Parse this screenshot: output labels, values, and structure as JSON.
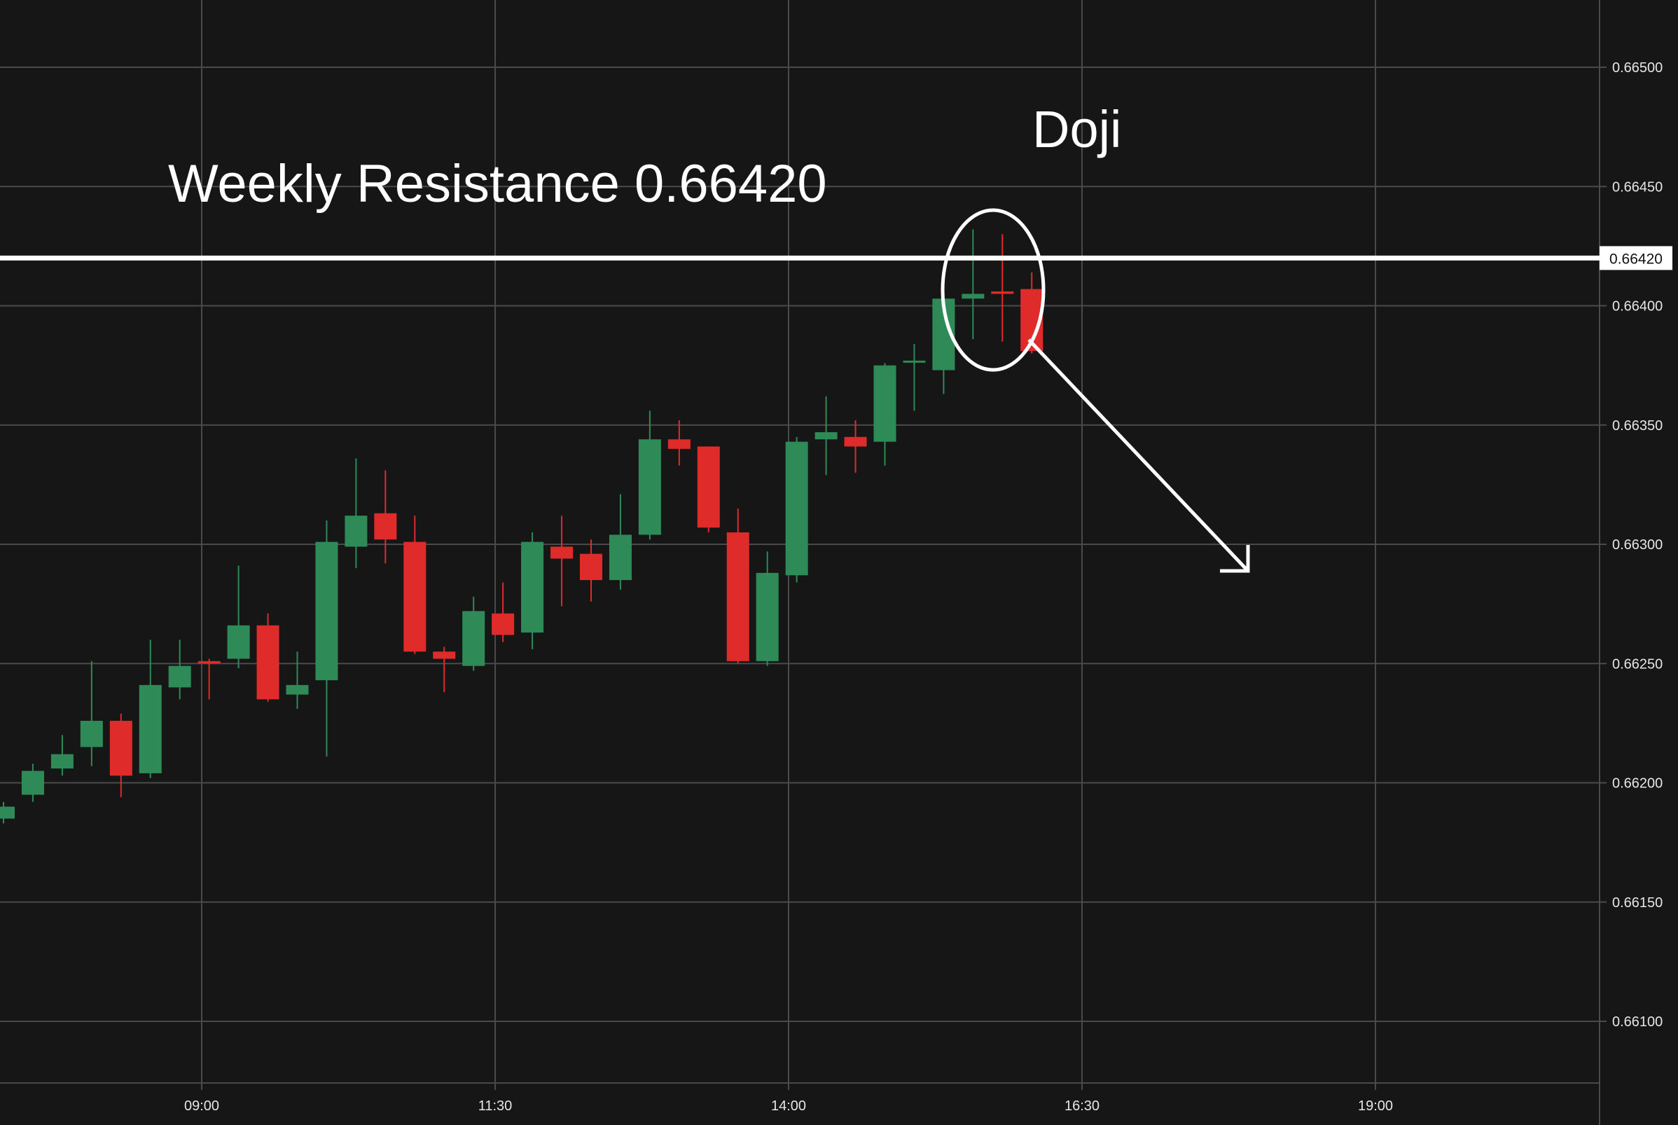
{
  "colors": {
    "background": "#161616",
    "grid": "#4a4a4a",
    "bull": "#2e8b57",
    "bear": "#e02b2b",
    "annotation": "#ffffff",
    "axis_text": "#e6e6e6"
  },
  "annotations": {
    "resistance_text": "Weekly Resistance 0.66420",
    "doji_text": "Doji",
    "resistance_label": "0.66420"
  },
  "chart_data": {
    "type": "candlestick",
    "title": "",
    "xlabel": "",
    "ylabel": "",
    "ylim": [
      0.6607,
      0.6653
    ],
    "grid": true,
    "x_tick_labels": [
      "09:00",
      "11:30",
      "14:00",
      "16:30",
      "19:00"
    ],
    "y_tick_labels": [
      "0.66500",
      "0.66450",
      "0.66400",
      "0.66350",
      "0.66300",
      "0.66250",
      "0.66200",
      "0.66150",
      "0.66100"
    ],
    "resistance_level": 0.6642,
    "candles": [
      {
        "open": 0.66185,
        "high": 0.66192,
        "low": 0.66183,
        "close": 0.6619
      },
      {
        "open": 0.66195,
        "high": 0.66208,
        "low": 0.66192,
        "close": 0.66205
      },
      {
        "open": 0.66206,
        "high": 0.6622,
        "low": 0.66203,
        "close": 0.66212
      },
      {
        "open": 0.66215,
        "high": 0.66251,
        "low": 0.66207,
        "close": 0.66226
      },
      {
        "open": 0.66226,
        "high": 0.66229,
        "low": 0.66194,
        "close": 0.66203
      },
      {
        "open": 0.66204,
        "high": 0.6626,
        "low": 0.66202,
        "close": 0.66241
      },
      {
        "open": 0.6624,
        "high": 0.6626,
        "low": 0.66235,
        "close": 0.66249
      },
      {
        "open": 0.66251,
        "high": 0.66252,
        "low": 0.66235,
        "close": 0.6625
      },
      {
        "open": 0.66252,
        "high": 0.66291,
        "low": 0.66248,
        "close": 0.66266
      },
      {
        "open": 0.66266,
        "high": 0.66271,
        "low": 0.66234,
        "close": 0.66235
      },
      {
        "open": 0.66237,
        "high": 0.66255,
        "low": 0.66231,
        "close": 0.66241
      },
      {
        "open": 0.66243,
        "high": 0.6631,
        "low": 0.66211,
        "close": 0.66301
      },
      {
        "open": 0.66299,
        "high": 0.66336,
        "low": 0.6629,
        "close": 0.66312
      },
      {
        "open": 0.66313,
        "high": 0.66331,
        "low": 0.66292,
        "close": 0.66302
      },
      {
        "open": 0.66301,
        "high": 0.66312,
        "low": 0.66254,
        "close": 0.66255
      },
      {
        "open": 0.66255,
        "high": 0.66257,
        "low": 0.66238,
        "close": 0.66252
      },
      {
        "open": 0.66249,
        "high": 0.66278,
        "low": 0.66247,
        "close": 0.66272
      },
      {
        "open": 0.66271,
        "high": 0.66284,
        "low": 0.66259,
        "close": 0.66262
      },
      {
        "open": 0.66263,
        "high": 0.66305,
        "low": 0.66256,
        "close": 0.66301
      },
      {
        "open": 0.66299,
        "high": 0.66312,
        "low": 0.66274,
        "close": 0.66294
      },
      {
        "open": 0.66296,
        "high": 0.66302,
        "low": 0.66276,
        "close": 0.66285
      },
      {
        "open": 0.66285,
        "high": 0.66321,
        "low": 0.66281,
        "close": 0.66304
      },
      {
        "open": 0.66304,
        "high": 0.66356,
        "low": 0.66302,
        "close": 0.66344
      },
      {
        "open": 0.66344,
        "high": 0.66352,
        "low": 0.66333,
        "close": 0.6634
      },
      {
        "open": 0.66341,
        "high": 0.66341,
        "low": 0.66305,
        "close": 0.66307
      },
      {
        "open": 0.66305,
        "high": 0.66315,
        "low": 0.6625,
        "close": 0.66251
      },
      {
        "open": 0.66251,
        "high": 0.66297,
        "low": 0.66249,
        "close": 0.66288
      },
      {
        "open": 0.66287,
        "high": 0.66345,
        "low": 0.66284,
        "close": 0.66343
      },
      {
        "open": 0.66344,
        "high": 0.66362,
        "low": 0.66329,
        "close": 0.66347
      },
      {
        "open": 0.66345,
        "high": 0.66352,
        "low": 0.6633,
        "close": 0.66341
      },
      {
        "open": 0.66343,
        "high": 0.66376,
        "low": 0.66333,
        "close": 0.66375
      },
      {
        "open": 0.66377,
        "high": 0.66384,
        "low": 0.66356,
        "close": 0.66377
      },
      {
        "open": 0.66373,
        "high": 0.6641,
        "low": 0.66363,
        "close": 0.66403
      },
      {
        "open": 0.66403,
        "high": 0.66432,
        "low": 0.66386,
        "close": 0.66405
      },
      {
        "open": 0.66406,
        "high": 0.6643,
        "low": 0.66385,
        "close": 0.66405
      },
      {
        "open": 0.66407,
        "high": 0.66414,
        "low": 0.6638,
        "close": 0.66381
      }
    ]
  }
}
